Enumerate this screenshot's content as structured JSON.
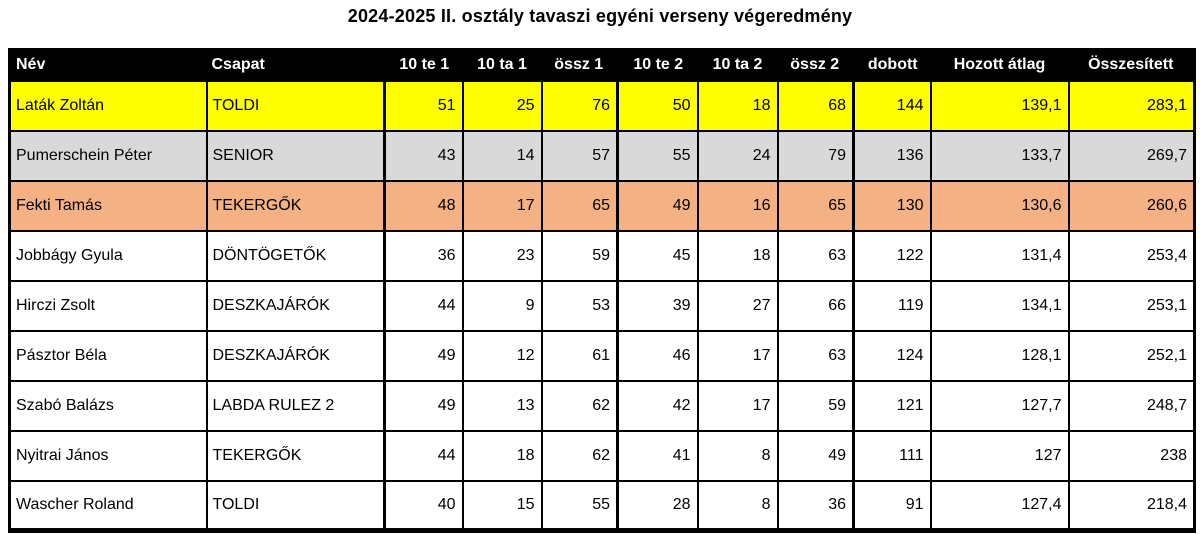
{
  "title": "2024-2025 II. osztály tavaszi egyéni verseny végeredmény",
  "colors": {
    "header_bg": "#000000",
    "header_text": "#FFFFFF",
    "border": "#000000",
    "gold_row": "#FFFF00",
    "silver_row": "#D9D9D9",
    "bronze_row": "#F4B183",
    "default_row": "#FFFFFF"
  },
  "table": {
    "columns": [
      {
        "key": "nev",
        "label": "Név",
        "align": "left"
      },
      {
        "key": "csapat",
        "label": "Csapat",
        "align": "left"
      },
      {
        "key": "te1",
        "label": "10 te 1",
        "align": "right"
      },
      {
        "key": "ta1",
        "label": "10 ta 1",
        "align": "right"
      },
      {
        "key": "ossz1",
        "label": "össz 1",
        "align": "right"
      },
      {
        "key": "te2",
        "label": "10 te 2",
        "align": "right"
      },
      {
        "key": "ta2",
        "label": "10 ta 2",
        "align": "right"
      },
      {
        "key": "ossz2",
        "label": "össz 2",
        "align": "right"
      },
      {
        "key": "dobott",
        "label": "dobott",
        "align": "right"
      },
      {
        "key": "hozott-atlag",
        "label": "Hozott átlag",
        "align": "right"
      },
      {
        "key": "osszesitett",
        "label": "Összesített",
        "align": "right"
      }
    ],
    "rows": [
      {
        "rank_color": "gold",
        "cells": [
          "Laták Zoltán",
          "TOLDI",
          "51",
          "25",
          "76",
          "50",
          "18",
          "68",
          "144",
          "139,1",
          "283,1"
        ]
      },
      {
        "rank_color": "silver",
        "cells": [
          "Pumerschein Péter",
          "SENIOR",
          "43",
          "14",
          "57",
          "55",
          "24",
          "79",
          "136",
          "133,7",
          "269,7"
        ]
      },
      {
        "rank_color": "bronze",
        "cells": [
          "Fekti Tamás",
          "TEKERGŐK",
          "48",
          "17",
          "65",
          "49",
          "16",
          "65",
          "130",
          "130,6",
          "260,6"
        ]
      },
      {
        "rank_color": "default",
        "cells": [
          "Jobbágy Gyula",
          "DÖNTÖGETŐK",
          "36",
          "23",
          "59",
          "45",
          "18",
          "63",
          "122",
          "131,4",
          "253,4"
        ]
      },
      {
        "rank_color": "default",
        "cells": [
          "Hirczi Zsolt",
          "DESZKAJÁRÓK",
          "44",
          "9",
          "53",
          "39",
          "27",
          "66",
          "119",
          "134,1",
          "253,1"
        ]
      },
      {
        "rank_color": "default",
        "cells": [
          "Pásztor Béla",
          "DESZKAJÁRÓK",
          "49",
          "12",
          "61",
          "46",
          "17",
          "63",
          "124",
          "128,1",
          "252,1"
        ]
      },
      {
        "rank_color": "default",
        "cells": [
          "Szabó Balázs",
          "LABDA RULEZ 2",
          "49",
          "13",
          "62",
          "42",
          "17",
          "59",
          "121",
          "127,7",
          "248,7"
        ]
      },
      {
        "rank_color": "default",
        "cells": [
          "Nyitrai János",
          "TEKERGŐK",
          "44",
          "18",
          "62",
          "41",
          "8",
          "49",
          "111",
          "127",
          "238"
        ]
      },
      {
        "rank_color": "default",
        "cells": [
          "Wascher Roland",
          "TOLDI",
          "40",
          "15",
          "55",
          "28",
          "8",
          "36",
          "91",
          "127,4",
          "218,4"
        ]
      }
    ]
  }
}
